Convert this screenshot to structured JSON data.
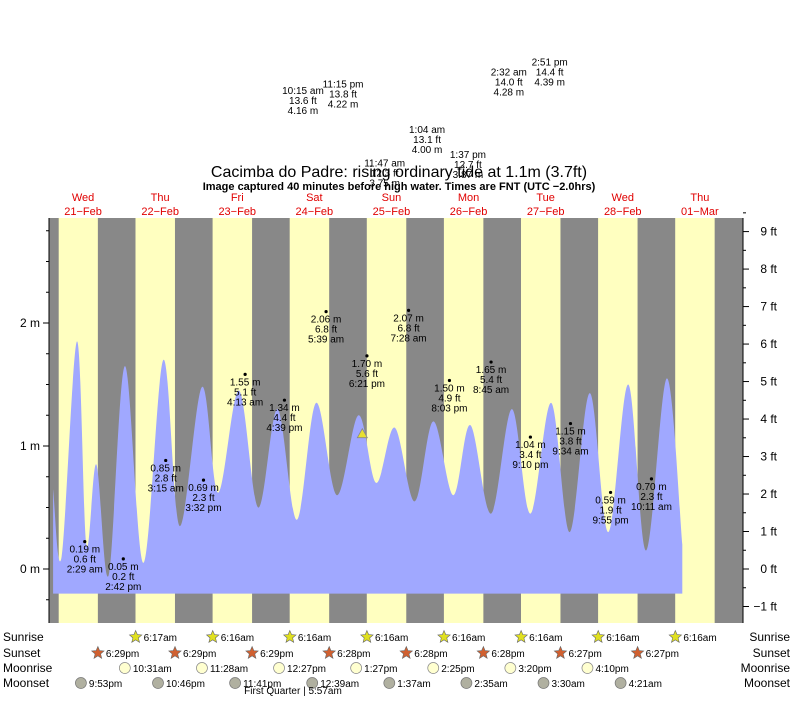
{
  "title": "Cacimba do Padre: rising  ordinary tide at 1.1m (3.7ft)",
  "subtitle": "Image captured 40 minutes before high water. Times are FNT (UTC −2.0hrs)",
  "colors": {
    "day": "#ffffc0",
    "night": "#888888",
    "tide": "#a0a8ff",
    "date_label": "#e00000",
    "sun_star": "#e0e020",
    "sunset_star": "#d06030",
    "moon": "#ffffd0",
    "moonset": "#b0b0a0",
    "marker": "#e8e030"
  },
  "day_headers": [
    {
      "dow": "Wed",
      "date": "21−Feb"
    },
    {
      "dow": "Thu",
      "date": "22−Feb"
    },
    {
      "dow": "Fri",
      "date": "23−Feb"
    },
    {
      "dow": "Sat",
      "date": "24−Feb"
    },
    {
      "dow": "Sun",
      "date": "25−Feb"
    },
    {
      "dow": "Mon",
      "date": "26−Feb"
    },
    {
      "dow": "Tue",
      "date": "27−Feb"
    },
    {
      "dow": "Wed",
      "date": "28−Feb"
    },
    {
      "dow": "Thu",
      "date": "01−Mar"
    }
  ],
  "y_axis_left": [
    {
      "value": 0,
      "label": "0 m"
    },
    {
      "value": 1,
      "label": "1 m"
    },
    {
      "value": 2,
      "label": "2 m"
    }
  ],
  "y_axis_right": [
    {
      "value": -1,
      "label": "−1 ft"
    },
    {
      "value": 0,
      "label": "0 ft"
    },
    {
      "value": 1,
      "label": "1 ft"
    },
    {
      "value": 2,
      "label": "2 ft"
    },
    {
      "value": 3,
      "label": "3 ft"
    },
    {
      "value": 4,
      "label": "4 ft"
    },
    {
      "value": 5,
      "label": "5 ft"
    },
    {
      "value": 6,
      "label": "6 ft"
    },
    {
      "value": 7,
      "label": "7 ft"
    },
    {
      "value": 8,
      "label": "8 ft"
    },
    {
      "value": 9,
      "label": "9 ft"
    }
  ],
  "chart_data": {
    "type": "area",
    "x_unit": "days since 21-Feb 00:00",
    "ylabel": "",
    "ylim": [
      -0.4,
      2.85
    ],
    "nights": [
      [
        0.0,
        0.262
      ],
      [
        0.77,
        1.258
      ],
      [
        1.77,
        2.258
      ],
      [
        2.77,
        3.258
      ],
      [
        3.77,
        4.258
      ],
      [
        4.77,
        5.258
      ],
      [
        5.77,
        6.258
      ],
      [
        6.77,
        7.258
      ],
      [
        7.77,
        8.258
      ],
      [
        8.77,
        9.258
      ]
    ],
    "tide_series": [
      {
        "x": 0.19,
        "y": 0.65
      },
      {
        "x": 0.3,
        "y": 0.1
      },
      {
        "x": 0.5,
        "y": 1.85
      },
      {
        "x": 0.62,
        "y": 0.2
      },
      {
        "x": 0.75,
        "y": 0.85
      },
      {
        "x": 0.91,
        "y": -0.05
      },
      {
        "x": 1.12,
        "y": 1.65
      },
      {
        "x": 1.36,
        "y": 0.05
      },
      {
        "x": 1.62,
        "y": 1.7
      },
      {
        "x": 1.83,
        "y": 0.35
      },
      {
        "x": 2.12,
        "y": 1.48
      },
      {
        "x": 2.33,
        "y": 0.62
      },
      {
        "x": 2.6,
        "y": 1.45
      },
      {
        "x": 2.85,
        "y": 0.5
      },
      {
        "x": 3.1,
        "y": 1.3
      },
      {
        "x": 3.35,
        "y": 0.4
      },
      {
        "x": 3.6,
        "y": 1.35
      },
      {
        "x": 3.87,
        "y": 0.6
      },
      {
        "x": 4.15,
        "y": 1.25
      },
      {
        "x": 4.38,
        "y": 0.7
      },
      {
        "x": 4.62,
        "y": 1.15
      },
      {
        "x": 4.88,
        "y": 0.55
      },
      {
        "x": 5.12,
        "y": 1.2
      },
      {
        "x": 5.38,
        "y": 0.6
      },
      {
        "x": 5.6,
        "y": 1.17
      },
      {
        "x": 5.87,
        "y": 0.45
      },
      {
        "x": 6.14,
        "y": 1.3
      },
      {
        "x": 6.38,
        "y": 0.45
      },
      {
        "x": 6.65,
        "y": 1.35
      },
      {
        "x": 6.89,
        "y": 0.3
      },
      {
        "x": 7.15,
        "y": 1.43
      },
      {
        "x": 7.39,
        "y": 0.3
      },
      {
        "x": 7.65,
        "y": 1.5
      },
      {
        "x": 7.88,
        "y": 0.15
      },
      {
        "x": 8.15,
        "y": 1.55
      },
      {
        "x": 8.35,
        "y": 0.2
      }
    ],
    "current": {
      "x": 4.2,
      "y": 1.1
    },
    "extremes": [
      {
        "x": 0.6,
        "y": 0.19,
        "m": "0.19 m",
        "ft": "0.6 ft",
        "time": "2:29 am"
      },
      {
        "x": 1.1,
        "y": 0.05,
        "m": "0.05 m",
        "ft": "0.2 ft",
        "time": "2:42 pm"
      },
      {
        "x": 1.65,
        "y": 0.85,
        "m": "0.85 m",
        "ft": "2.8 ft",
        "time": "3:15 am"
      },
      {
        "x": 2.14,
        "y": 0.69,
        "m": "0.69 m",
        "ft": "2.3 ft",
        "time": "3:32 pm"
      },
      {
        "x": 2.68,
        "y": 1.55,
        "m": "1.55 m",
        "ft": "5.1 ft",
        "time": "4:13 am"
      },
      {
        "x": 3.19,
        "y": 1.34,
        "m": "1.34 m",
        "ft": "4.4 ft",
        "time": "4:39 pm"
      },
      {
        "x": 3.73,
        "y": 2.06,
        "m": "2.06 m",
        "ft": "6.8 ft",
        "time": "5:39 am"
      },
      {
        "x": 4.26,
        "y": 1.7,
        "m": "1.70 m",
        "ft": "5.6 ft",
        "time": "6:21 pm"
      },
      {
        "x": 4.8,
        "y": 2.07,
        "m": "2.07 m",
        "ft": "6.8 ft",
        "time": "7:28 am"
      },
      {
        "x": 5.33,
        "y": 1.5,
        "m": "1.50 m",
        "ft": "4.9 ft",
        "time": "8:03 pm"
      },
      {
        "x": 5.87,
        "y": 1.65,
        "m": "1.65 m",
        "ft": "5.4 ft",
        "time": "8:45 am"
      },
      {
        "x": 6.38,
        "y": 1.04,
        "m": "1.04 m",
        "ft": "3.4 ft",
        "time": "9:10 pm"
      },
      {
        "x": 6.9,
        "y": 1.15,
        "m": "1.15 m",
        "ft": "3.8 ft",
        "time": "9:34 am"
      },
      {
        "x": 7.42,
        "y": 0.59,
        "m": "0.59 m",
        "ft": "1.9 ft",
        "time": "9:55 pm"
      },
      {
        "x": 7.95,
        "y": 0.7,
        "m": "0.70 m",
        "ft": "2.3 ft",
        "time": "10:11 am"
      }
    ],
    "offchart_extremes": [
      {
        "x": 3.43,
        "y": 3.92,
        "m": "4.16 m",
        "ft": "13.6 ft",
        "time": "10:15 am"
      },
      {
        "x": 3.95,
        "y": 3.97,
        "m": "4.22 m",
        "ft": "13.8 ft",
        "time": "11:15 pm"
      },
      {
        "x": 4.49,
        "y": 3.33,
        "m": "3.75 m",
        "ft": "12.3 ft",
        "time": "11:47 am"
      },
      {
        "x": 5.04,
        "y": 3.6,
        "m": "4.00 m",
        "ft": "13.1 ft",
        "time": "1:04 am"
      },
      {
        "x": 5.57,
        "y": 3.4,
        "m": "3.87 m",
        "ft": "12.7 ft",
        "time": "1:37 pm"
      },
      {
        "x": 6.1,
        "y": 4.07,
        "m": "4.28 m",
        "ft": "14.0 ft",
        "time": "2:32 am"
      },
      {
        "x": 6.63,
        "y": 4.15,
        "m": "4.39 m",
        "ft": "14.4 ft",
        "time": "2:51 pm"
      }
    ]
  },
  "almanac": {
    "row_labels": [
      "Sunrise",
      "Sunset",
      "Moonrise",
      "Moonset"
    ],
    "sunrise": [
      {
        "x": 1.26,
        "time": "6:17am"
      },
      {
        "x": 2.26,
        "time": "6:16am"
      },
      {
        "x": 3.26,
        "time": "6:16am"
      },
      {
        "x": 4.26,
        "time": "6:16am"
      },
      {
        "x": 5.26,
        "time": "6:16am"
      },
      {
        "x": 6.26,
        "time": "6:16am"
      },
      {
        "x": 7.26,
        "time": "6:16am"
      },
      {
        "x": 8.26,
        "time": "6:16am"
      }
    ],
    "sunset": [
      {
        "x": 0.77,
        "time": "6:29pm"
      },
      {
        "x": 1.77,
        "time": "6:29pm"
      },
      {
        "x": 2.77,
        "time": "6:29pm"
      },
      {
        "x": 3.77,
        "time": "6:28pm"
      },
      {
        "x": 4.77,
        "time": "6:28pm"
      },
      {
        "x": 5.77,
        "time": "6:28pm"
      },
      {
        "x": 6.77,
        "time": "6:27pm"
      },
      {
        "x": 7.77,
        "time": "6:27pm"
      }
    ],
    "moonrise": [
      {
        "x": 1.12,
        "time": "10:31am"
      },
      {
        "x": 2.12,
        "time": "11:28am"
      },
      {
        "x": 3.12,
        "time": "12:27pm"
      },
      {
        "x": 4.12,
        "time": "1:27pm"
      },
      {
        "x": 5.12,
        "time": "2:25pm"
      },
      {
        "x": 6.12,
        "time": "3:20pm"
      },
      {
        "x": 7.12,
        "time": "4:10pm"
      }
    ],
    "moonset": [
      {
        "x": 0.55,
        "time": "9:53pm"
      },
      {
        "x": 1.55,
        "time": "10:46pm"
      },
      {
        "x": 2.55,
        "time": "11:41pm"
      },
      {
        "x": 3.55,
        "time": "12:39am"
      },
      {
        "x": 4.55,
        "time": "1:37am"
      },
      {
        "x": 5.55,
        "time": "2:35am"
      },
      {
        "x": 6.55,
        "time": "3:30am"
      },
      {
        "x": 7.55,
        "time": "4:21am"
      }
    ],
    "phase_note": "First Quarter | 5:57am"
  }
}
